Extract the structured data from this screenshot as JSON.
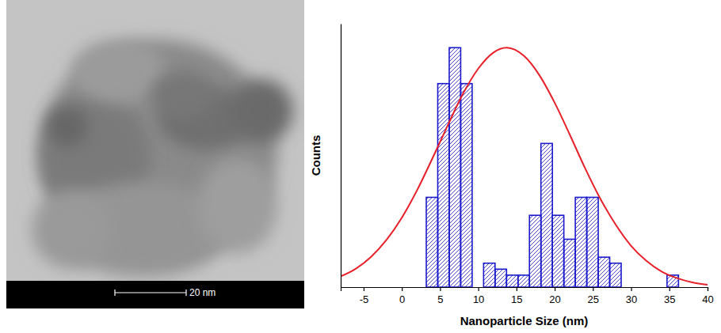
{
  "image": {
    "scale_bar": "20 nm"
  },
  "chart_data": {
    "type": "histogram",
    "xlabel": "Nanoparticle Size (nm)",
    "ylabel": "Counts",
    "bins": [
      3.2,
      4.7,
      6.2,
      7.7,
      9.2,
      10.7,
      12.2,
      13.7,
      15.2,
      16.7,
      18.2,
      19.7,
      21.2,
      22.7,
      24.2,
      25.7,
      27.2,
      28.7,
      30.2,
      31.7,
      33.2,
      34.7,
      36.2
    ],
    "counts": [
      15,
      34,
      40,
      34,
      0,
      4,
      3,
      2,
      2,
      12,
      24,
      12,
      8,
      15,
      15,
      5,
      4,
      0,
      0,
      0,
      0,
      2
    ],
    "color": "#1a1acc",
    "fit": {
      "type": "line",
      "color": "#e8202a",
      "x": [
        -8,
        -6,
        -4,
        -2,
        0,
        2,
        4,
        6,
        8,
        10,
        12,
        13.7,
        16,
        18,
        20,
        22,
        24,
        26,
        28,
        30,
        32,
        34,
        36,
        38,
        40
      ],
      "values": [
        1.8,
        3.1,
        5.1,
        7.9,
        11.6,
        16.2,
        21.5,
        27.0,
        32.3,
        36.5,
        39.2,
        40,
        38.6,
        35.4,
        30.8,
        25.4,
        19.8,
        14.7,
        10.4,
        6.9,
        4.4,
        2.6,
        1.5,
        0.8,
        0.4
      ]
    },
    "xlim": [
      -8,
      40
    ],
    "xticks": [
      -5,
      0,
      5,
      10,
      15,
      20,
      25,
      30,
      35,
      40
    ],
    "ylim": [
      0,
      44
    ],
    "tick_labels": "x"
  }
}
